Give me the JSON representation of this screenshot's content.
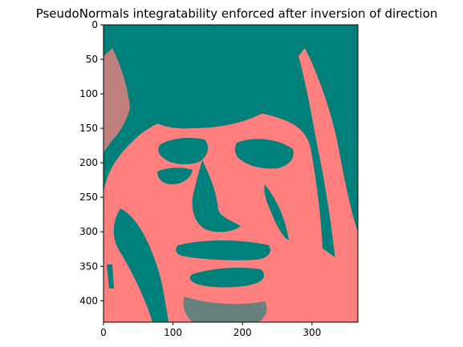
{
  "chart_data": {
    "type": "heatmap",
    "title": "PseudoNormals integratability enforced after inversion of direction",
    "xlabel": "",
    "ylabel": "",
    "xlim": [
      0,
      366
    ],
    "ylim": [
      431,
      0
    ],
    "x_ticks": [
      0,
      100,
      200,
      300
    ],
    "x_tick_labels": [
      "0",
      "100",
      "200",
      "300"
    ],
    "y_ticks": [
      0,
      50,
      100,
      150,
      200,
      250,
      300,
      350,
      400
    ],
    "y_tick_labels": [
      "0",
      "50",
      "100",
      "150",
      "200",
      "250",
      "300",
      "350",
      "400"
    ],
    "image_content": "binary-valued face image (two levels)",
    "colors": {
      "low": "#00807a",
      "high": "#ff7f7f"
    },
    "grid": false,
    "legend": "none"
  }
}
